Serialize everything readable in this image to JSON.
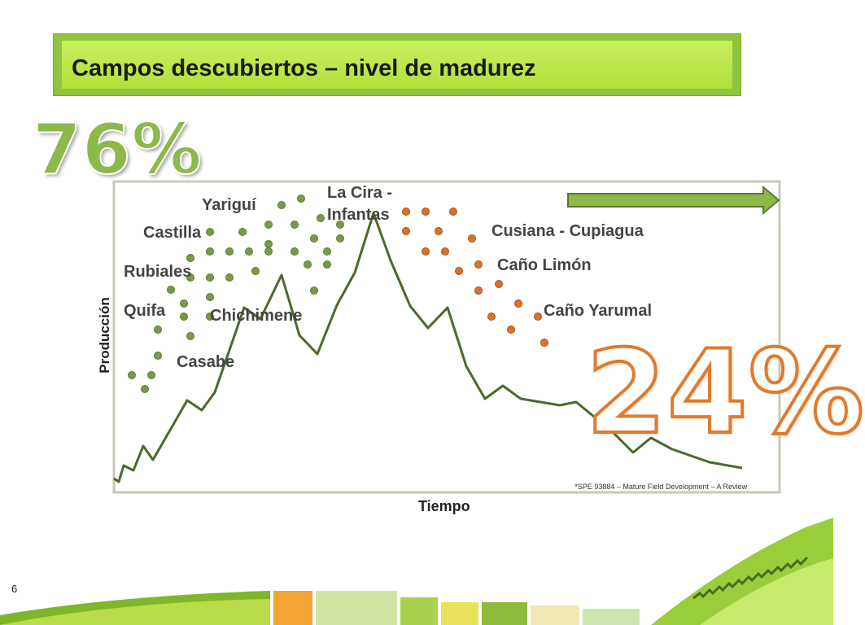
{
  "title": "Campos descubiertos – nivel de madurez",
  "stat_left": "76%",
  "stat_right": "24%",
  "page_number": "6",
  "chart_data": {
    "type": "line",
    "xlabel": "Tiempo",
    "ylabel": "Producción",
    "source_note": "*SPE 93884 – Mature Field Development – A Review",
    "labels": [
      {
        "text": "Yariguí",
        "group": "developed"
      },
      {
        "text": "Castilla",
        "group": "developed"
      },
      {
        "text": "Rubiales",
        "group": "developed"
      },
      {
        "text": "Quifa",
        "group": "developed"
      },
      {
        "text": "Chichimene",
        "group": "developed"
      },
      {
        "text": "Casabe",
        "group": "developed"
      },
      {
        "text": "La Cira -",
        "group": "peak"
      },
      {
        "text": "Infantas",
        "group": "peak"
      },
      {
        "text": "Cusiana - Cupiagua",
        "group": "mature"
      },
      {
        "text": "Caño Limón",
        "group": "mature"
      },
      {
        "text": "Caño Yarumal",
        "group": "mature"
      }
    ],
    "colors": {
      "curve": "#4a6a2a",
      "developed_dot": "#7a9a4a",
      "mature_dot": "#d9732a",
      "frame": "#c9c9b8",
      "arrow": "#8db84a"
    }
  }
}
